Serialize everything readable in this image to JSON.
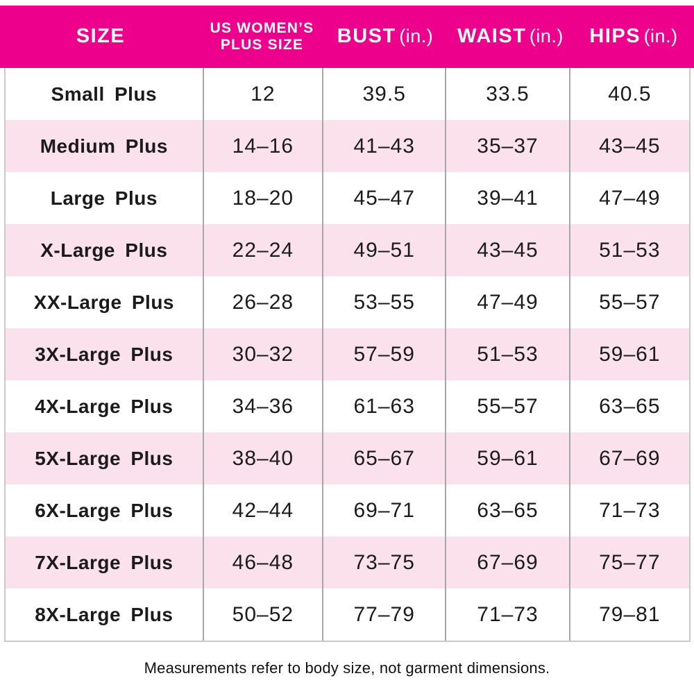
{
  "chart_data": {
    "type": "table",
    "columns": [
      "SIZE",
      "US WOMEN’S PLUS SIZE",
      "BUST (in.)",
      "WAIST (in.)",
      "HIPS (in.)"
    ],
    "rows": [
      [
        "Small Plus",
        "12",
        "39.5",
        "33.5",
        "40.5"
      ],
      [
        "Medium Plus",
        "14–16",
        "41–43",
        "35–37",
        "43–45"
      ],
      [
        "Large Plus",
        "18–20",
        "45–47",
        "39–41",
        "47–49"
      ],
      [
        "X-Large Plus",
        "22–24",
        "49–51",
        "43–45",
        "51–53"
      ],
      [
        "XX-Large Plus",
        "26–28",
        "53–55",
        "47–49",
        "55–57"
      ],
      [
        "3X-Large Plus",
        "30–32",
        "57–59",
        "51–53",
        "59–61"
      ],
      [
        "4X-Large Plus",
        "34–36",
        "61–63",
        "55–57",
        "63–65"
      ],
      [
        "5X-Large Plus",
        "38–40",
        "65–67",
        "59–61",
        "67–69"
      ],
      [
        "6X-Large Plus",
        "42–44",
        "69–71",
        "63–65",
        "71–73"
      ],
      [
        "7X-Large Plus",
        "46–48",
        "73–75",
        "67–69",
        "75–77"
      ],
      [
        "8X-Large Plus",
        "50–52",
        "77–79",
        "71–73",
        "79–81"
      ]
    ],
    "title": "",
    "legend": "none",
    "grid": "column separators only, alternating row shading"
  },
  "header": {
    "size": "SIZE",
    "us_line1": "US WOMEN’S",
    "us_line2": "PLUS SIZE",
    "bust": "BUST",
    "bust_unit": "(in.)",
    "waist": "WAIST",
    "waist_unit": "(in.)",
    "hips": "HIPS",
    "hips_unit": "(in.)"
  },
  "footer": {
    "note": "Measurements refer to body size, not garment dimensions."
  },
  "colors": {
    "header_bg": "#EC008C",
    "row_alt_bg": "#FAE1EC",
    "row_bg": "#FFFFFF",
    "separator": "#A6A6A6",
    "outer_border": "#C9C9C9",
    "header_text": "#FFFFFF",
    "body_text": "#1B1B1B"
  }
}
